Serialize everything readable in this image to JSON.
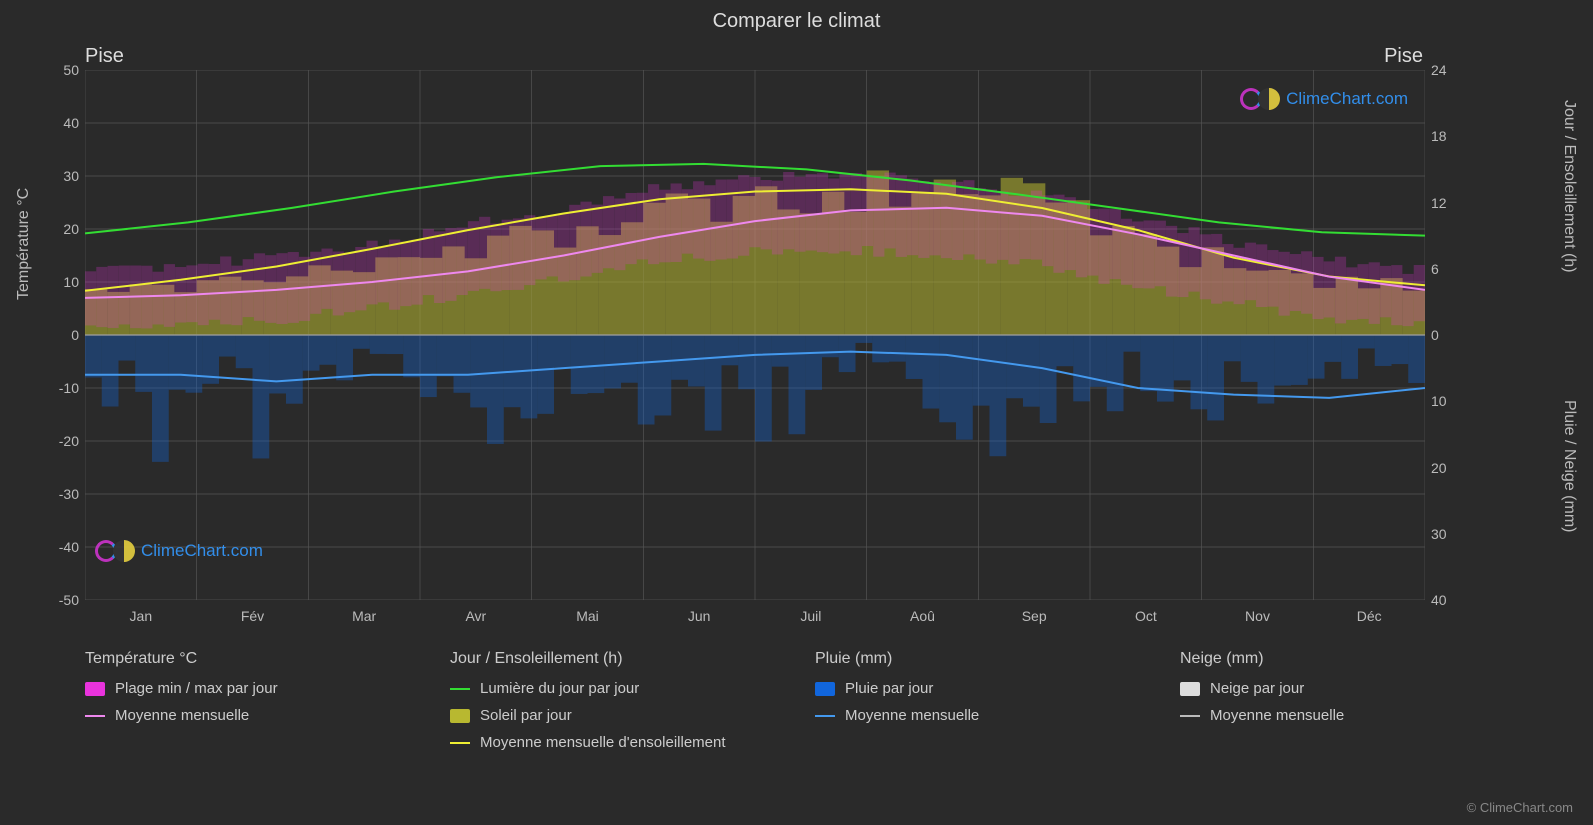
{
  "title": "Comparer le climat",
  "location_left": "Pise",
  "location_right": "Pise",
  "y_left_label": "Température °C",
  "y_right_a_label": "Jour / Ensoleillement (h)",
  "y_right_b_label": "Pluie / Neige (mm)",
  "copyright": "© ClimeChart.com",
  "watermark_text": "ClimeChart.com",
  "chart": {
    "background": "#2a2a2a",
    "plot_bg": "#2a2a2a",
    "grid_color": "#555555",
    "axis_color": "#888888",
    "months": [
      "Jan",
      "Fév",
      "Mar",
      "Avr",
      "Mai",
      "Jun",
      "Juil",
      "Aoû",
      "Sep",
      "Oct",
      "Nov",
      "Déc"
    ],
    "y_left": {
      "min": -50,
      "max": 50,
      "step": 10
    },
    "y_right_top": {
      "min_h": 0,
      "max_h": 24,
      "step_h": 6
    },
    "y_right_bottom": {
      "min_mm": 0,
      "max_mm": 40,
      "step_mm": 10
    },
    "colors": {
      "temp_range": "#e933dd",
      "temp_avg": "#ee88ee",
      "daylight": "#33dd33",
      "sunshine_bars": "#b8b830",
      "sunshine_avg": "#eeee33",
      "rain_bars": "#1166dd",
      "rain_avg": "#4499ee",
      "snow_bars": "#dddddd",
      "snow_avg": "#bbbbbb"
    },
    "series": {
      "daylight_h": [
        9.2,
        10.2,
        11.5,
        13.0,
        14.3,
        15.3,
        15.5,
        15.0,
        14.0,
        12.8,
        11.5,
        10.2,
        9.3,
        9.0
      ],
      "sunshine_avg_h": [
        4.0,
        5.0,
        6.2,
        7.8,
        9.5,
        11.0,
        12.3,
        13.0,
        13.2,
        12.8,
        11.5,
        9.5,
        7.0,
        5.3,
        4.5
      ],
      "temp_avg_c": [
        7.0,
        7.5,
        8.5,
        10.0,
        12.0,
        15.0,
        18.5,
        21.5,
        23.5,
        24.0,
        22.5,
        19.0,
        15.0,
        11.0,
        8.5
      ],
      "temp_max_c": [
        12,
        13,
        15,
        17,
        21,
        24,
        28,
        30,
        30,
        29,
        26,
        22,
        17,
        14,
        12
      ],
      "temp_min_c": [
        2,
        2,
        3,
        5,
        8,
        11,
        14,
        16,
        16,
        15,
        13,
        9,
        6,
        3,
        2
      ],
      "rain_avg_mm": [
        6,
        6,
        7,
        6,
        6,
        5,
        4,
        3,
        2.5,
        3,
        5,
        8,
        9,
        9.5,
        8
      ],
      "sunshine_daily_h": [
        4.2,
        4.0,
        4.5,
        5.0,
        5.5,
        6.0,
        6.5,
        7.0,
        7.8,
        8.5,
        9.0,
        10.0,
        11.0,
        11.5,
        12.0,
        12.5,
        13.0,
        13.2,
        13.0,
        12.5,
        12.0,
        11.0,
        9.5,
        8.0,
        7.0,
        6.0,
        5.0,
        4.5,
        4.3,
        4.2
      ],
      "rain_daily_mm": [
        8,
        12,
        5,
        10,
        15,
        6,
        9,
        11,
        4,
        8,
        13,
        7,
        10,
        6,
        3,
        5,
        2,
        4,
        3,
        6,
        9,
        12,
        14,
        11,
        15,
        13,
        10,
        12,
        9,
        8
      ]
    }
  },
  "legend": {
    "temp": {
      "title": "Température °C",
      "range": "Plage min / max par jour",
      "avg": "Moyenne mensuelle"
    },
    "day": {
      "title": "Jour / Ensoleillement (h)",
      "daylight": "Lumière du jour par jour",
      "sun_daily": "Soleil par jour",
      "sun_avg": "Moyenne mensuelle d'ensoleillement"
    },
    "rain": {
      "title": "Pluie (mm)",
      "daily": "Pluie par jour",
      "avg": "Moyenne mensuelle"
    },
    "snow": {
      "title": "Neige (mm)",
      "daily": "Neige par jour",
      "avg": "Moyenne mensuelle"
    }
  }
}
